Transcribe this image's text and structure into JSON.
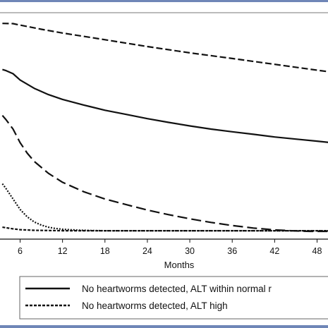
{
  "chart_data": {
    "type": "line",
    "title": "",
    "xlabel": "Months",
    "ylabel": "",
    "xlim": [
      3.5,
      52.5
    ],
    "ylim": [
      0,
      1
    ],
    "x_ticks": [
      6,
      12,
      18,
      24,
      30,
      36,
      42,
      48
    ],
    "x_tick_labels": [
      "6",
      "12",
      "18",
      "24",
      "30",
      "36",
      "42",
      "48"
    ],
    "grid": false,
    "legend_position": "bottom",
    "series": [
      {
        "style": "dashed",
        "x": [
          3.5,
          5,
          6,
          9,
          12,
          18,
          24,
          30,
          36,
          42,
          48,
          52.5
        ],
        "y": [
          0.996,
          0.995,
          0.988,
          0.968,
          0.95,
          0.918,
          0.885,
          0.855,
          0.828,
          0.8,
          0.772,
          0.752
        ]
      },
      {
        "name": "No heartworms detected, ALT within normal r",
        "style": "solid",
        "x": [
          3.5,
          4,
          5,
          6,
          8,
          10,
          12,
          15,
          18,
          21,
          24,
          27,
          30,
          33,
          36,
          39,
          42,
          45,
          48,
          50,
          52.5
        ],
        "y": [
          0.775,
          0.77,
          0.755,
          0.725,
          0.685,
          0.655,
          0.632,
          0.605,
          0.58,
          0.56,
          0.54,
          0.522,
          0.505,
          0.49,
          0.477,
          0.465,
          0.452,
          0.442,
          0.432,
          0.425,
          0.41
        ]
      },
      {
        "style": "long-dashed",
        "x": [
          3.5,
          4,
          5,
          6,
          7,
          8,
          10,
          12,
          15,
          18,
          21,
          24,
          27,
          30,
          33,
          36,
          39,
          42,
          45,
          47,
          52.5
        ],
        "y": [
          0.555,
          0.535,
          0.49,
          0.425,
          0.375,
          0.335,
          0.278,
          0.235,
          0.19,
          0.155,
          0.128,
          0.102,
          0.08,
          0.06,
          0.043,
          0.028,
          0.016,
          0.007,
          0.002,
          0.0,
          0.0
        ]
      },
      {
        "style": "dotted",
        "x": [
          3.5,
          4,
          5,
          6,
          7,
          8,
          9,
          10,
          11,
          12,
          14,
          16,
          18,
          52.5
        ],
        "y": [
          0.228,
          0.205,
          0.155,
          0.105,
          0.07,
          0.045,
          0.03,
          0.02,
          0.014,
          0.01,
          0.006,
          0.004,
          0.003,
          0.003
        ]
      },
      {
        "name": "No heartworms detected, ALT high",
        "style": "dense-dashed",
        "x": [
          3.5,
          5,
          6,
          8,
          10,
          12,
          18,
          52.5
        ],
        "y": [
          0.02,
          0.012,
          0.008,
          0.005,
          0.004,
          0.003,
          0.003,
          0.003
        ]
      }
    ]
  },
  "legend": {
    "items": [
      {
        "label": "No heartworms detected, ALT within normal r",
        "style": "solid"
      },
      {
        "label": "No heartworms detected, ALT high",
        "style": "dense-dashed"
      }
    ]
  },
  "colors": {
    "frame_band": "#6f86b7",
    "line": "#111111"
  }
}
